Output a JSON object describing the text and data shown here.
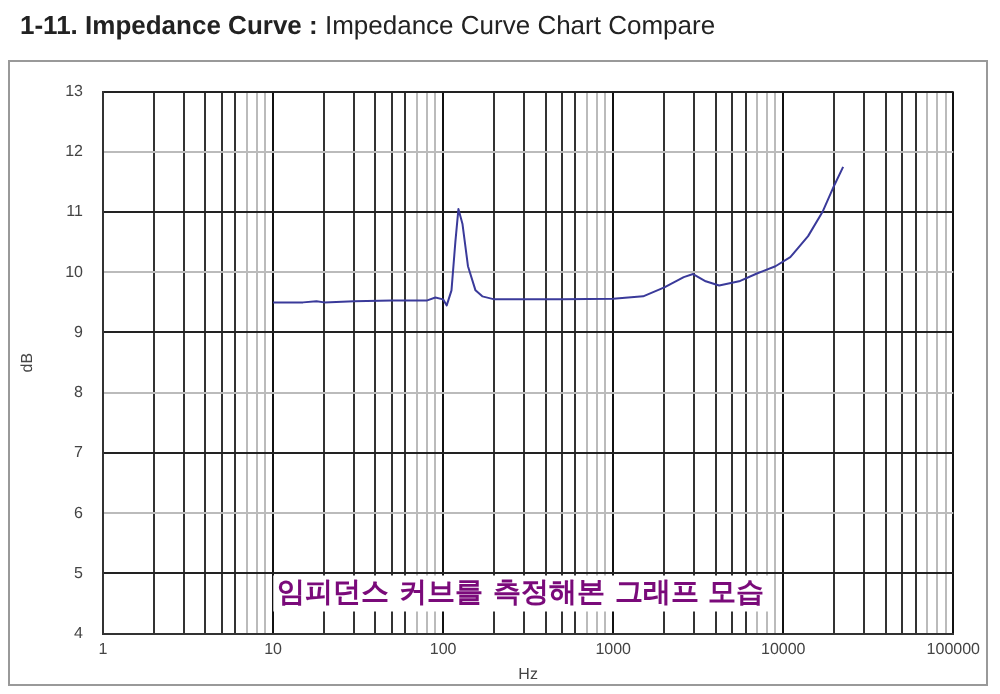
{
  "chart_data": {
    "type": "line",
    "title": "1-11. Impedance Curve :",
    "subtitle": "Impedance Curve Chart Compare",
    "xlabel": "Hz",
    "ylabel": "dB",
    "log": "x",
    "grid": true,
    "marker": "none",
    "line_style": "solid",
    "legend": false,
    "annotations": [
      "임피던스 커브를 측정해본 그래프 모습"
    ],
    "xlim": [
      1,
      100000
    ],
    "ylim": [
      4,
      13
    ],
    "xticks": [
      1,
      {
        "value": 2,
        "label": null
      },
      {
        "value": 3,
        "label": null
      },
      {
        "value": 4,
        "label": null
      },
      {
        "value": 5,
        "label": null
      },
      {
        "value": 6,
        "label": null
      },
      {
        "value": 7,
        "label": null
      },
      {
        "value": 8,
        "label": null
      },
      {
        "value": 9,
        "label": null
      },
      10,
      {
        "value": 20,
        "label": null
      },
      {
        "value": 30,
        "label": null
      },
      {
        "value": 40,
        "label": null
      },
      {
        "value": 50,
        "label": null
      },
      {
        "value": 60,
        "label": null
      },
      {
        "value": 70,
        "label": null
      },
      {
        "value": 80,
        "label": null
      },
      {
        "value": 90,
        "label": null
      },
      100,
      {
        "value": 200,
        "label": null
      },
      {
        "value": 300,
        "label": null
      },
      {
        "value": 400,
        "label": null
      },
      {
        "value": 500,
        "label": null
      },
      {
        "value": 600,
        "label": null
      },
      {
        "value": 700,
        "label": null
      },
      {
        "value": 800,
        "label": null
      },
      {
        "value": 900,
        "label": null
      },
      1000,
      {
        "value": 2000,
        "label": null
      },
      {
        "value": 3000,
        "label": null
      },
      {
        "value": 4000,
        "label": null
      },
      {
        "value": 5000,
        "label": null
      },
      {
        "value": 6000,
        "label": null
      },
      {
        "value": 7000,
        "label": null
      },
      {
        "value": 8000,
        "label": null
      },
      {
        "value": 9000,
        "label": null
      },
      10000,
      {
        "value": 20000,
        "label": null
      },
      {
        "value": 30000,
        "label": null
      },
      {
        "value": 40000,
        "label": null
      },
      {
        "value": 50000,
        "label": null
      },
      {
        "value": 60000,
        "label": null
      },
      {
        "value": 70000,
        "label": null
      },
      {
        "value": 80000,
        "label": null
      },
      {
        "value": 90000,
        "label": null
      },
      100000
    ],
    "yticks": [
      4,
      5,
      6,
      7,
      8,
      9,
      10,
      11,
      12,
      13
    ],
    "x": [
      10,
      15,
      18,
      20,
      30,
      50,
      80,
      90,
      100,
      105,
      112,
      118,
      123,
      130,
      140,
      155,
      170,
      200,
      500,
      1000,
      1500,
      2000,
      2600,
      2950,
      3500,
      4200,
      5500,
      7000,
      9000,
      11000,
      14000,
      17000,
      20000,
      22500
    ],
    "series": [
      {
        "color": "#3a3a9a",
        "values": [
          9.5,
          9.5,
          9.52,
          9.5,
          9.52,
          9.53,
          9.53,
          9.58,
          9.55,
          9.45,
          9.7,
          10.5,
          11.05,
          10.8,
          10.1,
          9.7,
          9.6,
          9.55,
          9.55,
          9.56,
          9.6,
          9.75,
          9.92,
          9.97,
          9.85,
          9.78,
          9.85,
          9.98,
          10.1,
          10.25,
          10.6,
          11.0,
          11.45,
          11.75
        ]
      }
    ]
  }
}
